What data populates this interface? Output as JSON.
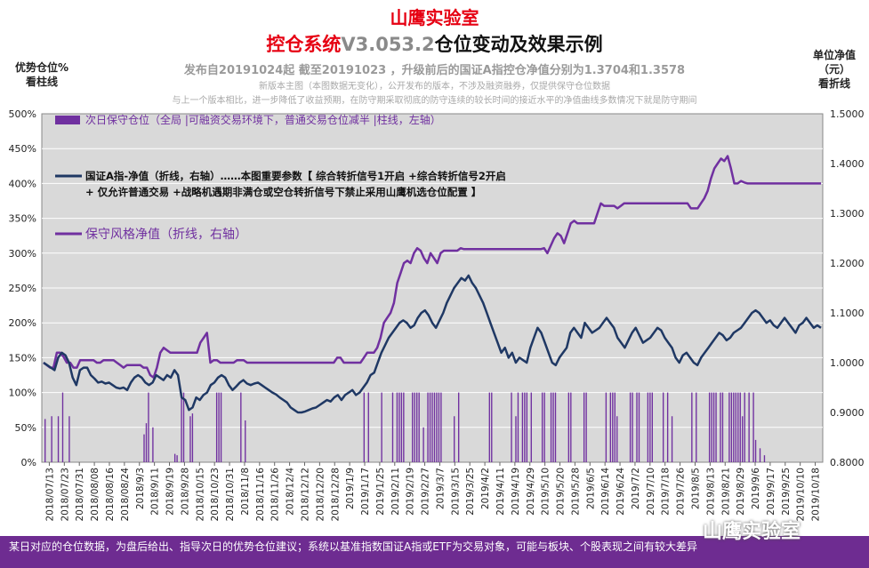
{
  "header": {
    "title_line1": "山鹰实验室",
    "title_line2_red": "控仓系统",
    "title_line2_version": "V3.053.2",
    "title_line2_rest": "仓位变动及效果示例",
    "subtitle": "发布自20191024起 截至20191023 ，升级前后的国证A指控仓净值分别为1.3704和1.3578",
    "note1": "新版本主图（本图数据无变化），公开发布的版本，不涉及融资融券，仅提供保守仓位数据",
    "note2": "与上一个版本相比，进一步降低了收益预期，在防守期采取彻底的防守连续的较长时间的接近水平的净值曲线多数情况下就是防守期间"
  },
  "axes": {
    "left_title_line1": "优势仓位%",
    "left_title_line2": "看柱线",
    "right_title_line1": "单位净值",
    "right_title_line2": "（元）",
    "right_title_line3": "看折线"
  },
  "footer": {
    "text": "某日对应的仓位数据，为盘后给出、指导次日的优势仓位建议；系统以基准指数国证A指或ETF为交易对象，可能与板块、个股表现之间有较大差异"
  },
  "watermark": "山鹰实验室",
  "colors": {
    "bar": "#7030a0",
    "index_line": "#1f3864",
    "strategy_line": "#7030a0",
    "plot_bg": "#d9d9d9",
    "footer_bg": "#6e2c91"
  },
  "chart_data": {
    "type": "bar+line",
    "legend_position": "top-left",
    "grid": true,
    "x_tick_labels": [
      "2018/07/13",
      "2018/07/23",
      "2018/07/31",
      "2018/08/08",
      "2018/08/16",
      "2018/08/24",
      "2018/9/3",
      "2018/9/11",
      "2018/9/19",
      "2018/9/28",
      "2018/10/15",
      "2018/10/23",
      "2018/10/31",
      "2018/11/8",
      "2018/11/16",
      "2018/11/26",
      "2018/12/4",
      "2018/12/12",
      "2018/12/20",
      "2018/12/28",
      "2019/1/9",
      "2019/1/17",
      "2019/1/25",
      "2019/2/11",
      "2019/2/19",
      "2019/2/27",
      "2019/3/7",
      "2019/3/15",
      "2019/3/25",
      "2019/4/2",
      "2019/4/11",
      "2019/4/19",
      "2019/4/29",
      "2019/5/10",
      "2019/5/20",
      "2019/5/28",
      "2019/6/5",
      "2019/6/14",
      "2019/6/24",
      "2019/7/2",
      "2019/7/10",
      "2019/7/18",
      "2019/7/26",
      "2019/8/5",
      "2019/8/13",
      "2019/8/21",
      "2019/8/29",
      "2019/9/6",
      "2019/9/17",
      "2019/9/25",
      "2019/10/10",
      "2019/10/18"
    ],
    "y_left": {
      "min": 0,
      "max": 500,
      "step": 50,
      "unit": "%"
    },
    "y_right": {
      "min": 0.8,
      "max": 1.5,
      "step": 0.1
    },
    "series": [
      {
        "name": "次日保守仓位（全局 |可融资交易环境下，普通交易仓位减半 |柱线，左轴）",
        "type": "bar",
        "axis": "left",
        "values": [
          0,
          62,
          0,
          0,
          66,
          0,
          0,
          66,
          0,
          100,
          0,
          0,
          66,
          0,
          0,
          0,
          0,
          0,
          0,
          0,
          0,
          0,
          0,
          0,
          0,
          0,
          0,
          0,
          0,
          0,
          0,
          0,
          0,
          0,
          0,
          0,
          0,
          0,
          0,
          0,
          0,
          0,
          0,
          0,
          0,
          0,
          40,
          56,
          100,
          0,
          50,
          0,
          0,
          0,
          0,
          0,
          0,
          0,
          0,
          0,
          12,
          10,
          0,
          100,
          100,
          0,
          0,
          66,
          70,
          0,
          0,
          0,
          0,
          0,
          0,
          0,
          0,
          0,
          0,
          100,
          100,
          100,
          0,
          0,
          0,
          0,
          0,
          0,
          0,
          0,
          100,
          0,
          60,
          0,
          0,
          0,
          0,
          0,
          0,
          0,
          0,
          0,
          0,
          0,
          0,
          0,
          0,
          0,
          0,
          0,
          0,
          0,
          0,
          0,
          0,
          0,
          0,
          0,
          0,
          0,
          0,
          0,
          0,
          0,
          0,
          0,
          0,
          0,
          0,
          0,
          0,
          0,
          0,
          0,
          0,
          0,
          0,
          0,
          0,
          0,
          0,
          0,
          0,
          0,
          0,
          0,
          100,
          0,
          100,
          0,
          0,
          0,
          0,
          0,
          100,
          0,
          0,
          0,
          0,
          100,
          0,
          100,
          100,
          100,
          100,
          0,
          0,
          0,
          100,
          100,
          100,
          100,
          0,
          50,
          0,
          100,
          100,
          100,
          100,
          100,
          100,
          100,
          0,
          0,
          0,
          0,
          0,
          66,
          0,
          100,
          0,
          0,
          0,
          0,
          0,
          0,
          0,
          0,
          0,
          0,
          0,
          0,
          0,
          100,
          100,
          0,
          0,
          0,
          0,
          0,
          0,
          0,
          0,
          100,
          0,
          66,
          100,
          0,
          100,
          100,
          100,
          0,
          100,
          0,
          0,
          0,
          0,
          100,
          100,
          0,
          0,
          100,
          100,
          100,
          0,
          0,
          0,
          0,
          0,
          100,
          100,
          0,
          0,
          0,
          0,
          0,
          100,
          100,
          0,
          0,
          0,
          0,
          0,
          0,
          0,
          0,
          100,
          0,
          100,
          100,
          100,
          66,
          0,
          0,
          0,
          0,
          0,
          100,
          100,
          0,
          100,
          100,
          0,
          0,
          0,
          100,
          100,
          100,
          0,
          0,
          0,
          0,
          100,
          0,
          100,
          0,
          66,
          0,
          0,
          0,
          0,
          0,
          0,
          0,
          0,
          100,
          0,
          100,
          0,
          0,
          0,
          0,
          0,
          100,
          100,
          100,
          100,
          0,
          100,
          100,
          0,
          0,
          100,
          100,
          100,
          100,
          100,
          100,
          66,
          100,
          0,
          100,
          0,
          100,
          32,
          0,
          20,
          0,
          10,
          0,
          0,
          0,
          0,
          0,
          0,
          0,
          0,
          0,
          0,
          0,
          0,
          0,
          0,
          0,
          0,
          0,
          0,
          0,
          0,
          0,
          0,
          0,
          0,
          0,
          0
        ]
      },
      {
        "name": "国证A指-净值（折线，右轴）……本图重要参数【 综合转折信号1开启 +综合转折信号2开启 + 仅允许普通交易 +战略机遇期非满仓或空仓转折信号下禁止采用山鹰机选仓位配置 】",
        "type": "line",
        "axis": "right",
        "values": [
          1.0,
          0.995,
          0.99,
          0.985,
          1.01,
          1.02,
          1.015,
          1.0,
          0.97,
          0.955,
          0.985,
          0.99,
          0.99,
          0.975,
          0.968,
          0.96,
          0.962,
          0.958,
          0.96,
          0.955,
          0.95,
          0.948,
          0.95,
          0.945,
          0.96,
          0.97,
          0.975,
          0.97,
          0.96,
          0.955,
          0.96,
          0.975,
          0.97,
          0.965,
          0.975,
          0.97,
          0.985,
          0.975,
          0.93,
          0.925,
          0.905,
          0.91,
          0.93,
          0.925,
          0.935,
          0.94,
          0.955,
          0.96,
          0.97,
          0.975,
          0.97,
          0.955,
          0.945,
          0.952,
          0.96,
          0.965,
          0.958,
          0.955,
          0.958,
          0.96,
          0.955,
          0.95,
          0.945,
          0.94,
          0.936,
          0.93,
          0.925,
          0.92,
          0.91,
          0.905,
          0.9,
          0.9,
          0.902,
          0.905,
          0.908,
          0.91,
          0.915,
          0.92,
          0.925,
          0.922,
          0.93,
          0.935,
          0.925,
          0.935,
          0.94,
          0.945,
          0.935,
          0.94,
          0.95,
          0.96,
          0.975,
          0.98,
          1.0,
          1.02,
          1.035,
          1.05,
          1.06,
          1.07,
          1.08,
          1.085,
          1.08,
          1.07,
          1.075,
          1.09,
          1.1,
          1.105,
          1.095,
          1.08,
          1.07,
          1.085,
          1.1,
          1.12,
          1.135,
          1.15,
          1.16,
          1.17,
          1.165,
          1.175,
          1.16,
          1.15,
          1.135,
          1.12,
          1.1,
          1.08,
          1.06,
          1.04,
          1.02,
          1.03,
          1.01,
          1.02,
          1.0,
          1.01,
          1.005,
          1.0,
          1.03,
          1.05,
          1.07,
          1.06,
          1.04,
          1.02,
          1.0,
          0.995,
          1.01,
          1.02,
          1.03,
          1.06,
          1.07,
          1.06,
          1.05,
          1.08,
          1.07,
          1.06,
          1.065,
          1.07,
          1.08,
          1.09,
          1.08,
          1.07,
          1.05,
          1.04,
          1.03,
          1.045,
          1.06,
          1.07,
          1.055,
          1.04,
          1.045,
          1.05,
          1.06,
          1.07,
          1.065,
          1.05,
          1.04,
          1.03,
          1.01,
          1.0,
          1.015,
          1.02,
          1.01,
          1.0,
          0.995,
          1.01,
          1.02,
          1.03,
          1.04,
          1.05,
          1.06,
          1.055,
          1.045,
          1.05,
          1.06,
          1.065,
          1.07,
          1.08,
          1.09,
          1.1,
          1.105,
          1.1,
          1.09,
          1.08,
          1.085,
          1.075,
          1.07,
          1.08,
          1.09,
          1.08,
          1.07,
          1.06,
          1.075,
          1.08,
          1.09,
          1.08,
          1.07,
          1.075,
          1.07
        ]
      },
      {
        "name": "保守风格净值（折线，右轴）",
        "type": "line",
        "axis": "right",
        "values": [
          1.0,
          0.995,
          0.99,
          0.99,
          1.02,
          1.02,
          1.012,
          1.0,
          1.0,
          0.99,
          0.99,
          1.005,
          1.005,
          1.005,
          1.005,
          1.005,
          1.0,
          1.0,
          1.005,
          1.005,
          1.005,
          1.005,
          1.0,
          0.995,
          0.99,
          0.995,
          0.995,
          0.995,
          0.995,
          0.995,
          0.99,
          0.99,
          0.975,
          0.97,
          0.99,
          1.02,
          1.03,
          1.025,
          1.02,
          1.02,
          1.02,
          1.02,
          1.02,
          1.02,
          1.02,
          1.02,
          1.02,
          1.04,
          1.05,
          1.06,
          1.0,
          1.005,
          1.005,
          1.0,
          1.0,
          1.0,
          1.0,
          1.0,
          1.005,
          1.005,
          1.005,
          1.0,
          1.0,
          1.0,
          1.0,
          1.0,
          1.0,
          1.0,
          1.0,
          1.0,
          1.0,
          1.0,
          1.0,
          1.0,
          1.0,
          1.0,
          1.0,
          1.0,
          1.0,
          1.0,
          1.0,
          1.0,
          1.0,
          1.0,
          1.0,
          1.0,
          1.0,
          1.0,
          1.01,
          1.01,
          1.0,
          1.0,
          1.0,
          1.0,
          1.0,
          1.0,
          1.01,
          1.02,
          1.02,
          1.02,
          1.03,
          1.05,
          1.08,
          1.09,
          1.1,
          1.12,
          1.16,
          1.18,
          1.2,
          1.205,
          1.2,
          1.22,
          1.23,
          1.225,
          1.21,
          1.2,
          1.22,
          1.21,
          1.2,
          1.22,
          1.225,
          1.225,
          1.225,
          1.225,
          1.225,
          1.23,
          1.228,
          1.228,
          1.228,
          1.228,
          1.228,
          1.228,
          1.228,
          1.228,
          1.228,
          1.228,
          1.228,
          1.228,
          1.228,
          1.228,
          1.228,
          1.228,
          1.228,
          1.228,
          1.228,
          1.228,
          1.228,
          1.228,
          1.228,
          1.228,
          1.23,
          1.22,
          1.235,
          1.25,
          1.26,
          1.255,
          1.24,
          1.26,
          1.28,
          1.285,
          1.28,
          1.28,
          1.28,
          1.28,
          1.28,
          1.28,
          1.3,
          1.32,
          1.315,
          1.315,
          1.315,
          1.315,
          1.31,
          1.315,
          1.32,
          1.32,
          1.32,
          1.32,
          1.32,
          1.32,
          1.32,
          1.32,
          1.32,
          1.32,
          1.32,
          1.32,
          1.32,
          1.32,
          1.32,
          1.32,
          1.32,
          1.32,
          1.32,
          1.32,
          1.31,
          1.31,
          1.31,
          1.32,
          1.33,
          1.345,
          1.37,
          1.39,
          1.4,
          1.41,
          1.405,
          1.415,
          1.39,
          1.36,
          1.36,
          1.365,
          1.362,
          1.36,
          1.36,
          1.36,
          1.36,
          1.36,
          1.36,
          1.36,
          1.36,
          1.36,
          1.36,
          1.36,
          1.36,
          1.36,
          1.36,
          1.36,
          1.36,
          1.36,
          1.36,
          1.36,
          1.36,
          1.36,
          1.36,
          1.36
        ]
      }
    ]
  }
}
